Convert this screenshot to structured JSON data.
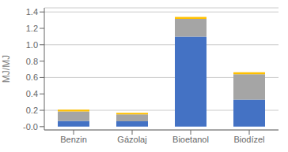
{
  "chart_data": {
    "type": "bar",
    "stacked": true,
    "categories": [
      "Benzin",
      "Gázolaj",
      "Bioetanol",
      "Biodízel"
    ],
    "series": [
      {
        "color": "#4472C4",
        "values": [
          0.07,
          0.065,
          1.1,
          0.33
        ]
      },
      {
        "color": "#A5A5A5",
        "values": [
          0.115,
          0.085,
          0.215,
          0.31
        ]
      },
      {
        "color": "#FFC000",
        "values": [
          0.022,
          0.018,
          0.025,
          0.025
        ]
      }
    ],
    "ylabel": "MJ/MJ",
    "ylim": [
      -0.04,
      1.45
    ],
    "yticks": [
      {
        "value": 0,
        "label": "-0.0"
      },
      0.2,
      0.4,
      0.6,
      0.8,
      {
        "value": 1,
        "label": "1.0"
      },
      1.2,
      1.4
    ],
    "grid": true
  }
}
